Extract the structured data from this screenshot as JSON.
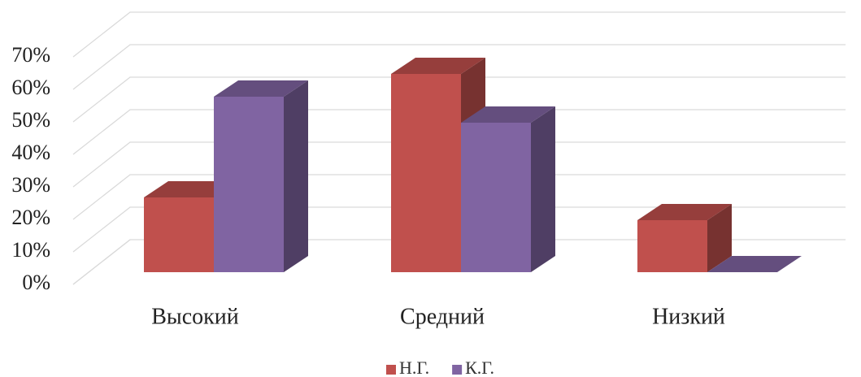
{
  "chart_data": {
    "type": "bar3d",
    "categories": [
      "Высокий",
      "Средний",
      "Низкий"
    ],
    "series": [
      {
        "name": "Н.Г.",
        "color": "#c0504d",
        "values": [
          23,
          61,
          16
        ]
      },
      {
        "name": "К.Г.",
        "color": "#8064a2",
        "values": [
          54,
          46,
          0
        ]
      }
    ],
    "ylim": [
      0,
      70
    ],
    "yticks": [
      {
        "value": 0,
        "label": "0%"
      },
      {
        "value": 10,
        "label": "10%"
      },
      {
        "value": 20,
        "label": "20%"
      },
      {
        "value": 30,
        "label": "30%"
      },
      {
        "value": 40,
        "label": "40%"
      },
      {
        "value": 50,
        "label": "50%"
      },
      {
        "value": 60,
        "label": "60%"
      },
      {
        "value": 70,
        "label": "70%"
      }
    ],
    "grid": true,
    "legend": "bottom"
  }
}
